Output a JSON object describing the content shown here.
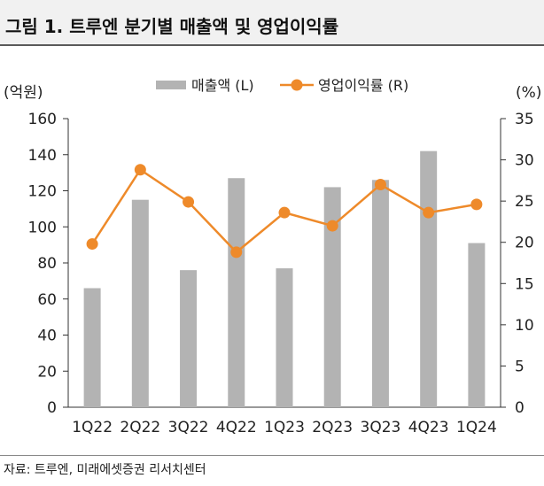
{
  "header": {
    "title": "그림 1. 트루엔 분기별 매출액 및 영업이익률"
  },
  "chart_data": {
    "type": "bar+line",
    "categories": [
      "1Q22",
      "2Q22",
      "3Q22",
      "4Q22",
      "1Q23",
      "2Q23",
      "3Q23",
      "4Q23",
      "1Q24"
    ],
    "series": [
      {
        "name": "매출액 (L)",
        "axis": "left",
        "type": "bar",
        "color": "#b3b3b3",
        "values": [
          66,
          115,
          76,
          127,
          77,
          122,
          126,
          142,
          91
        ]
      },
      {
        "name": "영업이익률 (R)",
        "axis": "right",
        "type": "line",
        "color": "#ee8a2a",
        "values": [
          19.8,
          28.8,
          24.9,
          18.8,
          23.6,
          22.0,
          27.0,
          23.6,
          24.6
        ]
      }
    ],
    "left_axis": {
      "label": "(억원)",
      "min": 0,
      "max": 160,
      "ticks": [
        0,
        20,
        40,
        60,
        80,
        100,
        120,
        140,
        160
      ]
    },
    "right_axis": {
      "label": "(%)",
      "min": 0,
      "max": 35,
      "ticks": [
        0,
        5,
        10,
        15,
        20,
        25,
        30,
        35
      ]
    },
    "legend_position": "top-center"
  },
  "source": {
    "text": "자료: 트루엔, 미래에셋증권 리서치센터"
  }
}
